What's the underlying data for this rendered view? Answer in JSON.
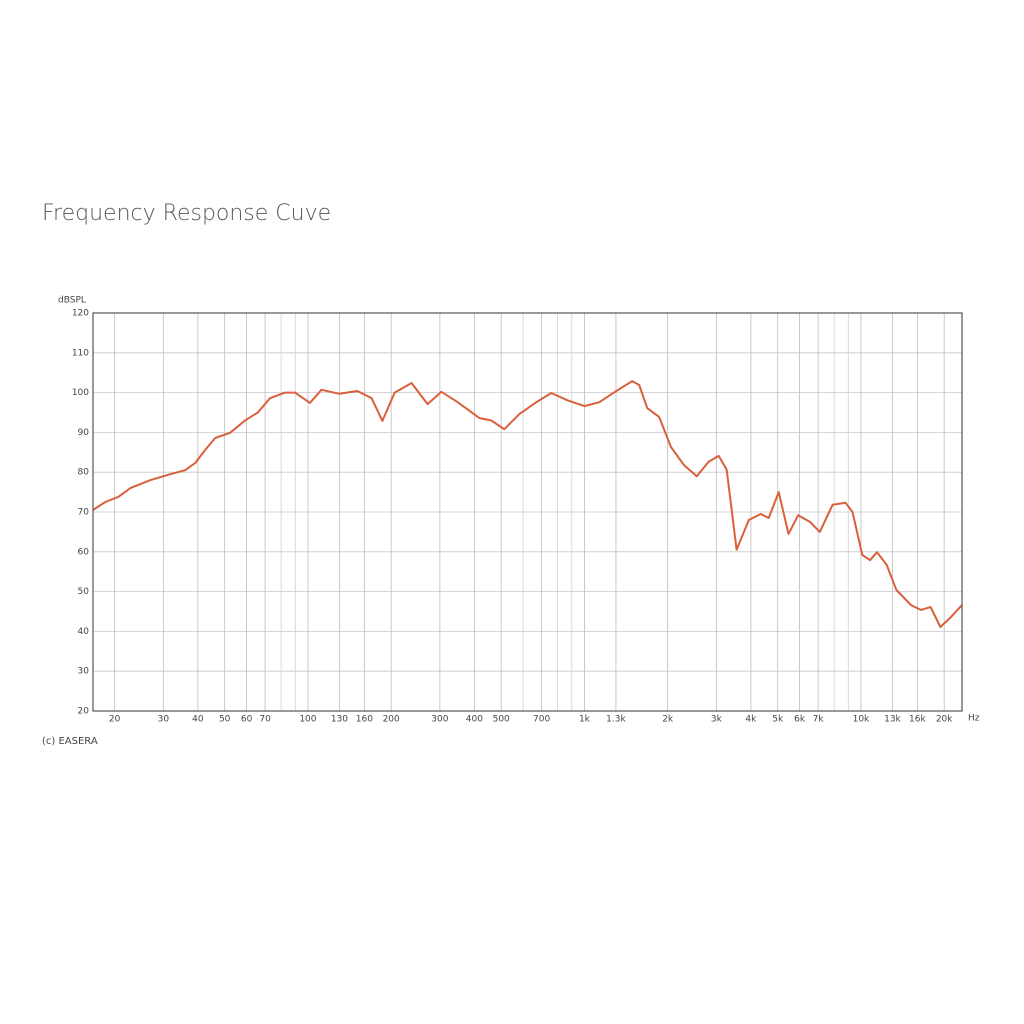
{
  "title": "Frequency Response Cuve",
  "chart_data": {
    "type": "line",
    "log_x": true,
    "grid": true,
    "y_label": "dBSPL",
    "x_label": "Hz",
    "annotation": "(c) EASERA",
    "xlim": [
      16.7,
      23200
    ],
    "ylim": [
      20,
      120
    ],
    "yticks": [
      20,
      30,
      40,
      50,
      60,
      70,
      80,
      90,
      100,
      110,
      120
    ],
    "xticks": [
      20,
      30,
      40,
      50,
      60,
      70,
      100,
      130,
      160,
      200,
      300,
      400,
      500,
      700,
      {
        "value": 1000,
        "label": "1k"
      },
      {
        "value": 1300,
        "label": "1.3k"
      },
      {
        "value": 2000,
        "label": "2k"
      },
      {
        "value": 3000,
        "label": "3k"
      },
      {
        "value": 4000,
        "label": "4k"
      },
      {
        "value": 5000,
        "label": "5k"
      },
      {
        "value": 6000,
        "label": "6k"
      },
      {
        "value": 7000,
        "label": "7k"
      },
      {
        "value": 10000,
        "label": "10k"
      },
      {
        "value": 13000,
        "label": "13k"
      },
      {
        "value": 16000,
        "label": "16k"
      },
      {
        "value": 20000,
        "label": "20k"
      }
    ],
    "x_minor_ticks": [
      80,
      90,
      600,
      800,
      900,
      8000,
      9000
    ],
    "series": [
      {
        "color": "#d9603b",
        "x": [
          16.7,
          18.5,
          20.6,
          22.8,
          26.9,
          31.8,
          36.0,
          39.1,
          42.5,
          46.2,
          52.3,
          59.2,
          65.9,
          72.9,
          82.6,
          89.8,
          101.7,
          112,
          130,
          151,
          170,
          186,
          206,
          237,
          271,
          304,
          348,
          417,
          461,
          513,
          582,
          670,
          759,
          866,
          1000,
          1133,
          1283,
          1488,
          1578,
          1686,
          1862,
          2057,
          2290,
          2550,
          2810,
          3060,
          3270,
          3550,
          3930,
          4340,
          4640,
          5040,
          5470,
          5930,
          6550,
          7100,
          7900,
          8800,
          9320,
          10110,
          10790,
          11430,
          12390,
          13430,
          15170,
          16460,
          17860,
          19380,
          21010,
          23200
        ],
        "values": [
          70.5,
          72.5,
          73.8,
          76,
          78,
          79.5,
          80.5,
          82.3,
          85.6,
          88.6,
          89.9,
          93,
          95,
          98.6,
          100,
          100,
          97.4,
          100.7,
          99.7,
          100.4,
          98.6,
          92.9,
          100,
          102.4,
          97.1,
          100.2,
          97.6,
          93.6,
          93,
          90.8,
          94.6,
          97.6,
          99.9,
          98.1,
          96.6,
          97.6,
          100.1,
          102.9,
          101.9,
          96.1,
          93.9,
          86.3,
          81.8,
          79,
          82.6,
          84.1,
          80.6,
          60.5,
          68,
          69.5,
          68.5,
          75,
          64.5,
          69.2,
          67.5,
          65,
          71.8,
          72.3,
          70,
          59.2,
          57.9,
          59.9,
          56.7,
          50.4,
          46.6,
          45.4,
          46.1,
          41.1,
          43.4,
          46.6
        ]
      }
    ]
  }
}
